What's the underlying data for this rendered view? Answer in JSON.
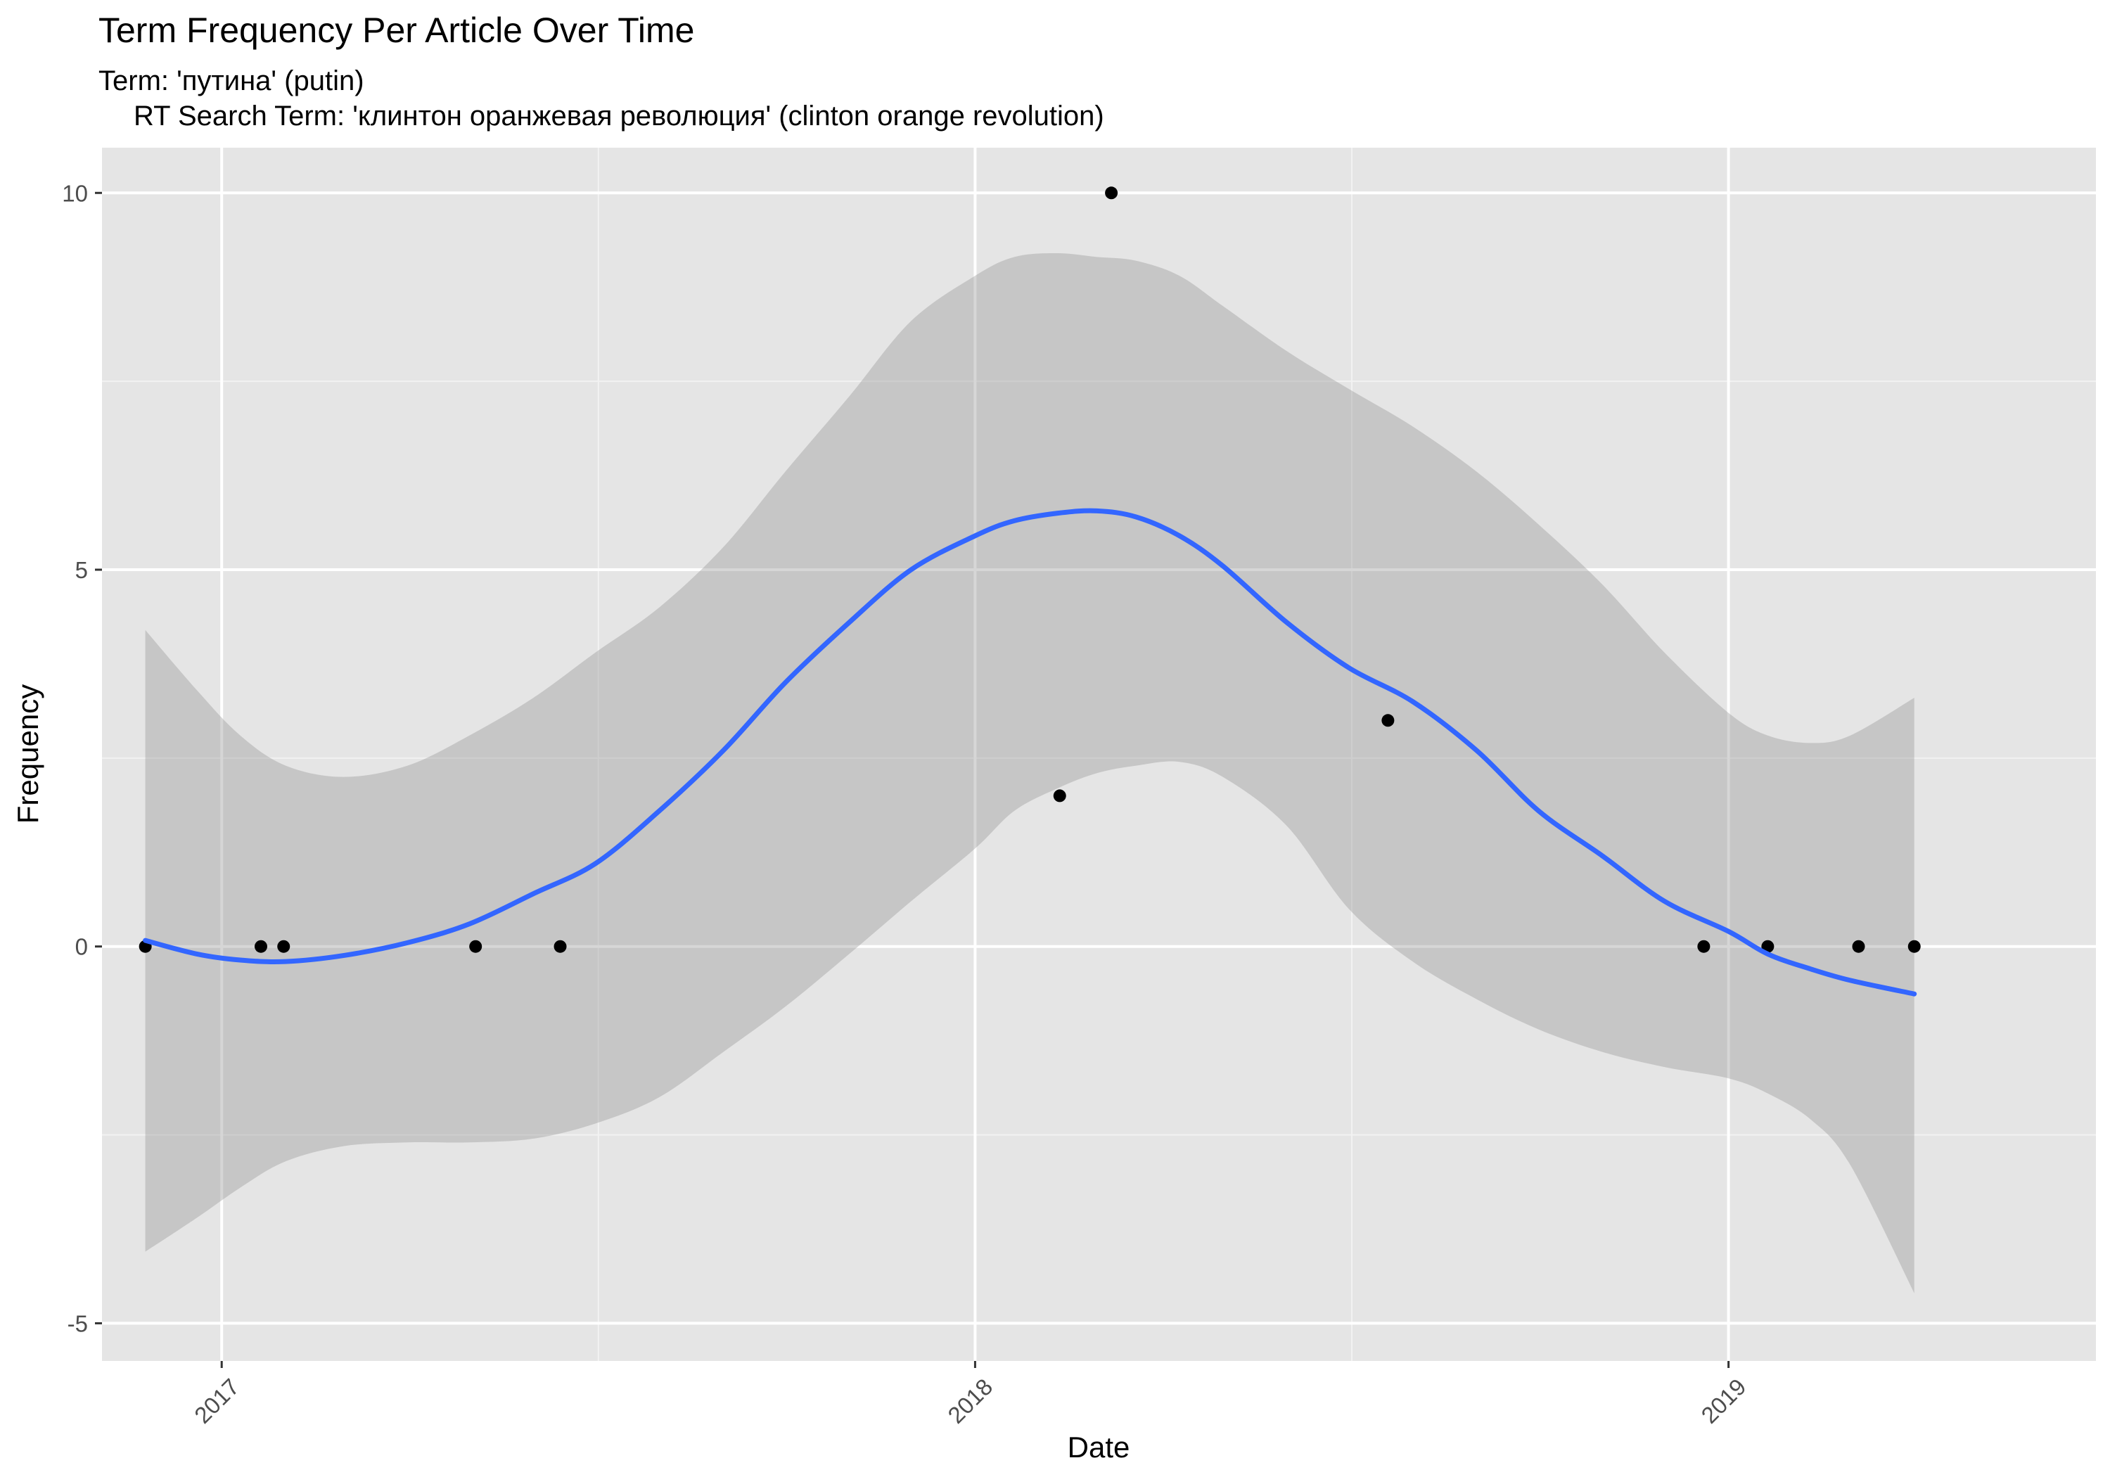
{
  "chart_data": {
    "type": "scatter",
    "title": "Term Frequency Per Article Over Time",
    "subtitle_line1": "Term: 'путина' (putin)",
    "subtitle_line2": "RT Search Term: 'клинтон оранжевая революция' (clinton orange revolution)",
    "xlabel": "Date",
    "ylabel": "Frequency",
    "x_type": "date",
    "xlim": [
      "2016-11-04",
      "2019-06-28"
    ],
    "ylim": [
      -5.5,
      10.6
    ],
    "x_ticks": [
      {
        "date": "2017-01-01",
        "label": "2017"
      },
      {
        "date": "2018-01-01",
        "label": "2018"
      },
      {
        "date": "2019-01-01",
        "label": "2019"
      }
    ],
    "y_ticks": [
      {
        "value": -5,
        "label": "-5"
      },
      {
        "value": 0,
        "label": "0"
      },
      {
        "value": 5,
        "label": "5"
      },
      {
        "value": 10,
        "label": "10"
      }
    ],
    "grid": true,
    "series": [
      {
        "points": [
          {
            "x": "2016-11-25",
            "y": 0
          },
          {
            "x": "2017-01-20",
            "y": 0
          },
          {
            "x": "2017-01-31",
            "y": 0
          },
          {
            "x": "2017-05-04",
            "y": 0
          },
          {
            "x": "2017-06-14",
            "y": 0
          },
          {
            "x": "2018-02-11",
            "y": 2
          },
          {
            "x": "2018-03-08",
            "y": 10
          },
          {
            "x": "2018-07-20",
            "y": 3
          },
          {
            "x": "2018-12-20",
            "y": 0
          },
          {
            "x": "2019-01-20",
            "y": 0
          },
          {
            "x": "2019-03-05",
            "y": 0
          },
          {
            "x": "2019-04-01",
            "y": 0
          }
        ]
      }
    ],
    "smooth": {
      "color": "#3366ff",
      "ribbon_color": "#999999",
      "x": [
        "2016-11-25",
        "2016-12-20",
        "2017-01-10",
        "2017-02-01",
        "2017-03-01",
        "2017-04-01",
        "2017-05-01",
        "2017-06-01",
        "2017-07-01",
        "2017-08-01",
        "2017-09-01",
        "2017-10-01",
        "2017-11-01",
        "2017-12-01",
        "2018-01-01",
        "2018-01-20",
        "2018-02-10",
        "2018-03-01",
        "2018-03-20",
        "2018-04-10",
        "2018-05-01",
        "2018-06-01",
        "2018-07-01",
        "2018-08-01",
        "2018-09-01",
        "2018-10-01",
        "2018-11-01",
        "2018-12-01",
        "2019-01-01",
        "2019-01-20",
        "2019-02-10",
        "2019-03-01",
        "2019-04-01"
      ],
      "y": [
        0.08,
        -0.1,
        -0.18,
        -0.2,
        -0.12,
        0.05,
        0.3,
        0.7,
        1.1,
        1.8,
        2.6,
        3.5,
        4.3,
        5.0,
        5.45,
        5.65,
        5.75,
        5.78,
        5.7,
        5.45,
        5.05,
        4.3,
        3.7,
        3.25,
        2.6,
        1.8,
        1.2,
        0.6,
        0.2,
        -0.1,
        -0.3,
        -0.45,
        -0.63
      ],
      "lower": [
        -4.05,
        -3.6,
        -3.2,
        -2.85,
        -2.65,
        -2.6,
        -2.6,
        -2.55,
        -2.35,
        -2.0,
        -1.4,
        -0.8,
        -0.1,
        0.6,
        1.3,
        1.8,
        2.1,
        2.3,
        2.4,
        2.45,
        2.25,
        1.6,
        0.5,
        -0.2,
        -0.7,
        -1.1,
        -1.4,
        -1.6,
        -1.75,
        -1.95,
        -2.3,
        -2.9,
        -4.6
      ],
      "upper": [
        4.2,
        3.4,
        2.8,
        2.4,
        2.25,
        2.4,
        2.8,
        3.3,
        3.9,
        4.5,
        5.3,
        6.3,
        7.3,
        8.3,
        8.9,
        9.15,
        9.2,
        9.15,
        9.1,
        8.9,
        8.5,
        7.9,
        7.4,
        6.9,
        6.3,
        5.6,
        4.8,
        3.9,
        3.1,
        2.8,
        2.7,
        2.8,
        3.3
      ]
    }
  }
}
